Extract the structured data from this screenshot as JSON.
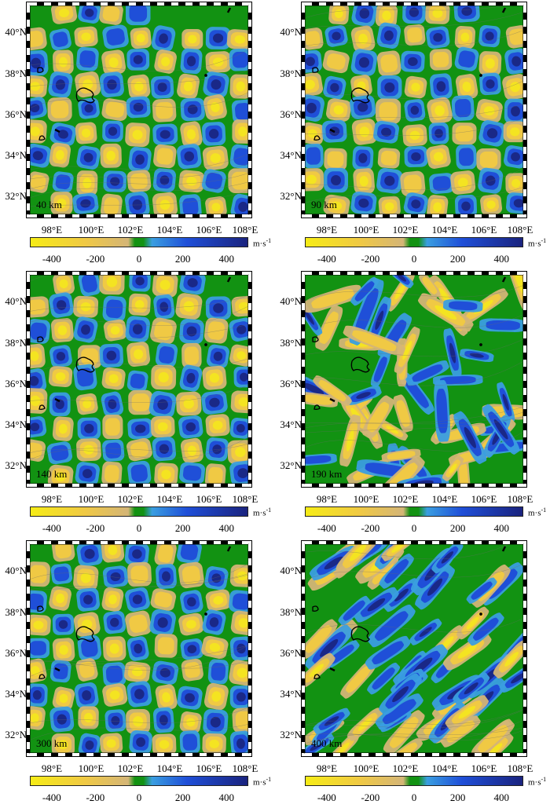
{
  "colors": {
    "background": "#129212",
    "negative_strong": "#f6ec16",
    "negative_mid": "#f0c944",
    "negative_weak": "#d4b577",
    "positive_weak": "#3a9ee0",
    "positive_mid": "#1f4fd8",
    "positive_strong": "#1a237e",
    "outline": "#000000"
  },
  "lat_labels": [
    "40°N",
    "38°N",
    "36°N",
    "34°N",
    "32°N"
  ],
  "lon_labels": [
    "98°E",
    "100°E",
    "102°E",
    "104°E",
    "106°E",
    "108°E"
  ],
  "colorbar": {
    "ticks": [
      "-400",
      "-200",
      "0",
      "200",
      "400"
    ],
    "unit": "m·s",
    "unit_exp": "-1",
    "range": [
      -500,
      500
    ]
  },
  "panels": [
    {
      "depth": "40 km",
      "pattern": "checker"
    },
    {
      "depth": "90 km",
      "pattern": "checker"
    },
    {
      "depth": "140 km",
      "pattern": "checker"
    },
    {
      "depth": "190 km",
      "pattern": "smeared"
    },
    {
      "depth": "300 km",
      "pattern": "checker"
    },
    {
      "depth": "400 km",
      "pattern": "streaked"
    }
  ]
}
